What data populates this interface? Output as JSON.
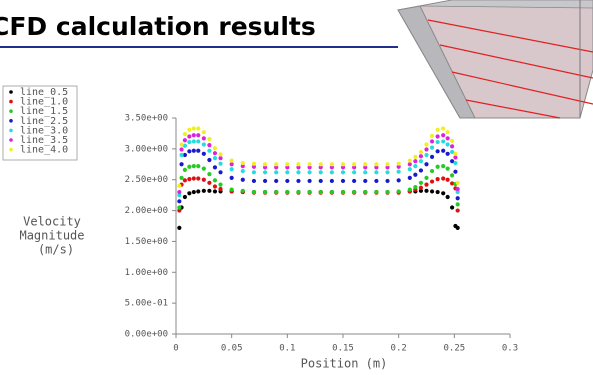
{
  "chart_data": {
    "type": "scatter",
    "title": "CFD calculation results",
    "xlabel": "Position (m)",
    "ylabel": [
      "Velocity",
      "Magnitude",
      "(m/s)"
    ],
    "xlim": [
      0,
      0.3
    ],
    "ylim": [
      0,
      3.5
    ],
    "xticks": [
      0,
      0.05,
      0.1,
      0.15,
      0.2,
      0.25,
      0.3
    ],
    "yticks": [
      {
        "value": 0,
        "label": "0.00e+00"
      },
      {
        "value": 0.5,
        "label": "5.00e-01"
      },
      {
        "value": 1,
        "label": "1.00e+00"
      },
      {
        "value": 1.5,
        "label": "1.50e+00"
      },
      {
        "value": 2,
        "label": "2.00e+00"
      },
      {
        "value": 2.5,
        "label": "2.50e+00"
      },
      {
        "value": 3,
        "label": "3.00e+00"
      },
      {
        "value": 3.5,
        "label": "3.50e+00"
      }
    ],
    "x": [
      0.003,
      0.005,
      0.008,
      0.012,
      0.016,
      0.02,
      0.025,
      0.03,
      0.035,
      0.04,
      0.05,
      0.06,
      0.07,
      0.08,
      0.09,
      0.1,
      0.11,
      0.12,
      0.13,
      0.14,
      0.15,
      0.16,
      0.17,
      0.18,
      0.19,
      0.2,
      0.21,
      0.215,
      0.22,
      0.225,
      0.23,
      0.235,
      0.24,
      0.244,
      0.248,
      0.251,
      0.253
    ],
    "series": [
      {
        "name": "line_0.5",
        "color": "#000000",
        "values": [
          1.72,
          2.05,
          2.22,
          2.28,
          2.3,
          2.31,
          2.32,
          2.32,
          2.31,
          2.31,
          2.31,
          2.3,
          2.3,
          2.3,
          2.3,
          2.3,
          2.3,
          2.3,
          2.3,
          2.3,
          2.3,
          2.3,
          2.3,
          2.3,
          2.3,
          2.3,
          2.31,
          2.31,
          2.32,
          2.32,
          2.31,
          2.3,
          2.28,
          2.22,
          2.05,
          1.75,
          1.72
        ]
      },
      {
        "name": "line_1.0",
        "color": "#e01010",
        "values": [
          2.0,
          2.42,
          2.49,
          2.51,
          2.52,
          2.52,
          2.5,
          2.45,
          2.39,
          2.35,
          2.31,
          2.3,
          2.29,
          2.29,
          2.29,
          2.29,
          2.29,
          2.29,
          2.29,
          2.29,
          2.29,
          2.29,
          2.29,
          2.29,
          2.29,
          2.29,
          2.31,
          2.34,
          2.37,
          2.42,
          2.47,
          2.51,
          2.52,
          2.5,
          2.44,
          2.36,
          2.0
        ]
      },
      {
        "name": "line_1.5",
        "color": "#22cc22",
        "values": [
          2.05,
          2.53,
          2.66,
          2.71,
          2.72,
          2.72,
          2.68,
          2.59,
          2.49,
          2.42,
          2.34,
          2.32,
          2.3,
          2.3,
          2.3,
          2.3,
          2.3,
          2.3,
          2.3,
          2.3,
          2.3,
          2.3,
          2.3,
          2.3,
          2.3,
          2.31,
          2.34,
          2.38,
          2.45,
          2.53,
          2.64,
          2.71,
          2.72,
          2.68,
          2.57,
          2.43,
          2.1
        ]
      },
      {
        "name": "line_2.5",
        "color": "#1a1acc",
        "values": [
          2.15,
          2.75,
          2.9,
          2.96,
          2.97,
          2.97,
          2.92,
          2.82,
          2.7,
          2.62,
          2.53,
          2.5,
          2.48,
          2.48,
          2.48,
          2.48,
          2.48,
          2.48,
          2.48,
          2.48,
          2.48,
          2.48,
          2.48,
          2.48,
          2.48,
          2.49,
          2.53,
          2.58,
          2.65,
          2.75,
          2.87,
          2.96,
          2.97,
          2.92,
          2.8,
          2.63,
          2.2
        ]
      },
      {
        "name": "line_3.0",
        "color": "#22dddd",
        "values": [
          2.25,
          2.9,
          3.05,
          3.11,
          3.12,
          3.12,
          3.07,
          2.97,
          2.85,
          2.76,
          2.67,
          2.64,
          2.62,
          2.62,
          2.62,
          2.62,
          2.62,
          2.62,
          2.62,
          2.62,
          2.62,
          2.62,
          2.62,
          2.62,
          2.62,
          2.63,
          2.67,
          2.72,
          2.8,
          2.9,
          3.02,
          3.11,
          3.12,
          3.07,
          2.95,
          2.77,
          2.3
        ]
      },
      {
        "name": "line_3.5",
        "color": "#dd22dd",
        "values": [
          2.3,
          2.99,
          3.14,
          3.2,
          3.22,
          3.22,
          3.17,
          3.06,
          2.93,
          2.85,
          2.75,
          2.72,
          2.71,
          2.7,
          2.7,
          2.7,
          2.7,
          2.7,
          2.7,
          2.7,
          2.7,
          2.7,
          2.7,
          2.7,
          2.7,
          2.71,
          2.75,
          2.8,
          2.88,
          2.99,
          3.12,
          3.2,
          3.22,
          3.17,
          3.04,
          2.86,
          2.35
        ]
      },
      {
        "name": "line_4.0",
        "color": "#f0f020",
        "values": [
          2.4,
          3.07,
          3.24,
          3.31,
          3.33,
          3.33,
          3.27,
          3.16,
          3.01,
          2.91,
          2.81,
          2.77,
          2.76,
          2.75,
          2.75,
          2.75,
          2.75,
          2.75,
          2.75,
          2.75,
          2.75,
          2.75,
          2.75,
          2.75,
          2.75,
          2.76,
          2.81,
          2.87,
          2.95,
          3.07,
          3.21,
          3.31,
          3.33,
          3.27,
          3.13,
          2.92,
          2.45
        ]
      }
    ]
  }
}
